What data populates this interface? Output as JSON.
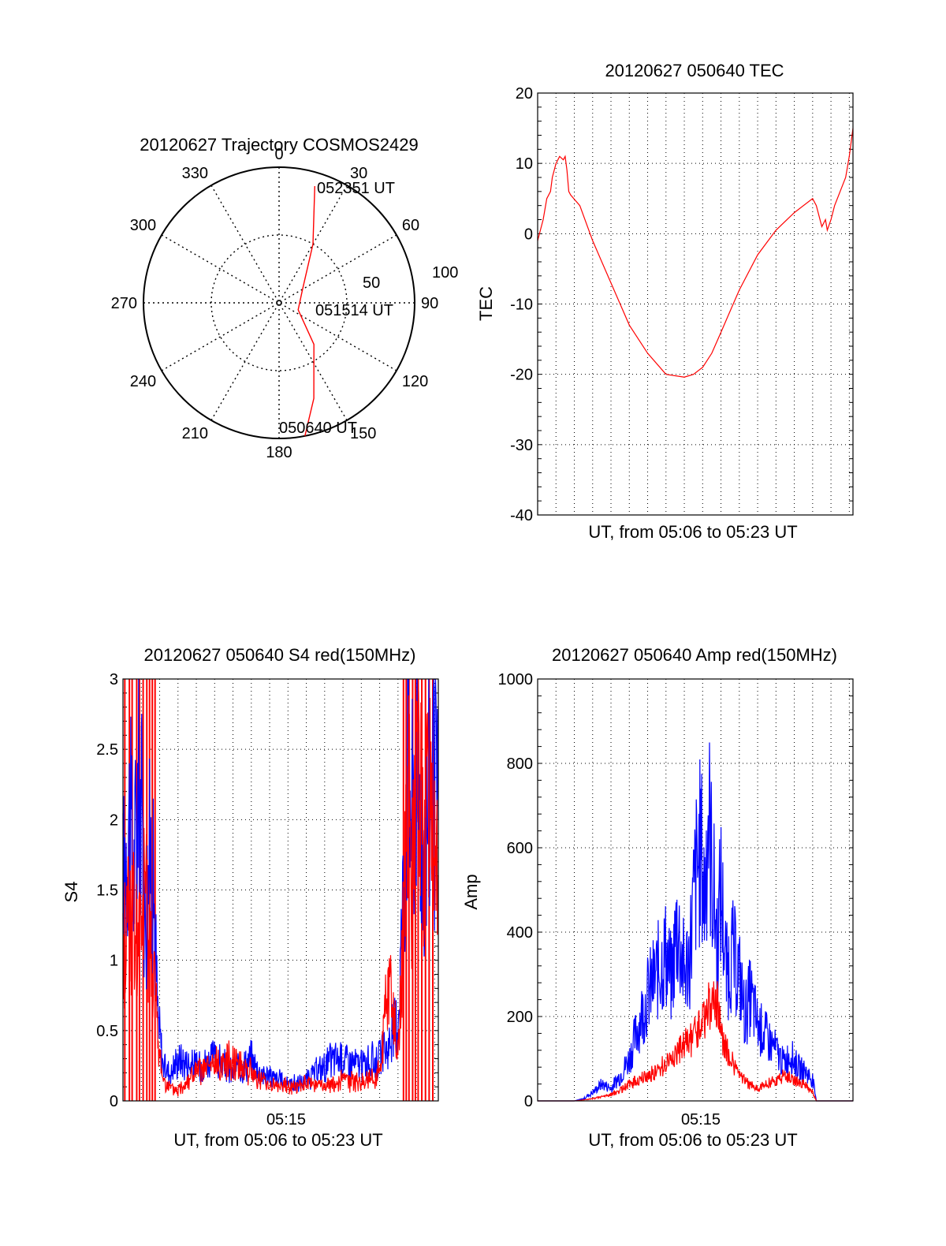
{
  "chart_data": [
    {
      "type": "polar",
      "title": "20120627 Trajectory COSMOS2429",
      "angle_labels": [
        "0",
        "30",
        "60",
        "90",
        "120",
        "150",
        "180",
        "210",
        "240",
        "270",
        "300",
        "330"
      ],
      "radius_labels": [
        "50",
        "100"
      ],
      "grid": true,
      "annotations": [
        "052351 UT",
        "051514 UT",
        "050640 UT"
      ],
      "series": [
        {
          "color": "#ff0000",
          "points": [
            {
              "az": 169,
              "r": 100
            },
            {
              "az": 160,
              "r": 75
            },
            {
              "az": 140,
              "r": 40
            },
            {
              "az": 110,
              "r": 15
            },
            {
              "az": 60,
              "r": 20
            },
            {
              "az": 30,
              "r": 50
            },
            {
              "az": 17,
              "r": 90
            }
          ]
        }
      ]
    },
    {
      "type": "line",
      "title": "20120627 050640 TEC",
      "xlabel": "UT, from 05:06 to 05:23 UT",
      "ylabel": "TEC",
      "ylim": [
        -40,
        20
      ],
      "yticks": [
        "20",
        "10",
        "0",
        "-10",
        "-20",
        "-30",
        "-40"
      ],
      "xlim": [
        0,
        17.2
      ],
      "grid": true,
      "series": [
        {
          "color": "#ff0000",
          "x": [
            0.0,
            0.1,
            0.3,
            0.5,
            0.7,
            0.8,
            1.0,
            1.2,
            1.4,
            1.5,
            1.6,
            1.7,
            1.8,
            2.3,
            3.0,
            4.0,
            5.0,
            6.0,
            7.0,
            8.0,
            8.5,
            9.0,
            9.5,
            10.0,
            10.5,
            11.0,
            12.0,
            13.0,
            14.0,
            15.0,
            15.2,
            15.5,
            15.7,
            15.8,
            16.0,
            16.2,
            16.5,
            16.8,
            17.0,
            17.2
          ],
          "y": [
            -1,
            0,
            2,
            5,
            6,
            8,
            10,
            11,
            10.5,
            11,
            9,
            6,
            5.5,
            4,
            -1,
            -7,
            -13,
            -17,
            -20,
            -20.4,
            -20,
            -19,
            -17,
            -14,
            -11,
            -8,
            -3,
            0.5,
            3,
            5,
            4,
            1,
            2,
            0.5,
            2,
            4,
            6,
            8,
            11,
            15
          ]
        }
      ]
    },
    {
      "type": "line",
      "title": "20120627 050640 S4 red(150MHz)",
      "xlabel": "UT, from 05:06 to 05:23 UT",
      "ylabel": "S4",
      "ylim": [
        0,
        3
      ],
      "yticks": [
        "3",
        "2.5",
        "2",
        "1.5",
        "1",
        "0.5",
        "0"
      ],
      "xlim": [
        0,
        17.2
      ],
      "xticks": [
        {
          "x": 8.9,
          "label": "05:15"
        }
      ],
      "grid": true,
      "series": [
        {
          "color": "#0000ff",
          "x": [
            0.0,
            0.3,
            0.6,
            0.9,
            1.2,
            1.5,
            1.7,
            1.9,
            2.2,
            2.6,
            3.0,
            4.0,
            5.0,
            6.0,
            7.0,
            7.5,
            8.0,
            8.5,
            9.0,
            9.5,
            10.0,
            10.5,
            11.0,
            11.5,
            12.0,
            13.0,
            14.0,
            14.5,
            15.0,
            15.3,
            15.5,
            15.8,
            16.0,
            16.4,
            16.8,
            17.2
          ],
          "y": [
            1.5,
            2.1,
            1.6,
            2.4,
            1.3,
            1.8,
            1.4,
            0.6,
            0.25,
            0.2,
            0.3,
            0.25,
            0.3,
            0.2,
            0.3,
            0.2,
            0.18,
            0.15,
            0.13,
            0.12,
            0.14,
            0.2,
            0.25,
            0.3,
            0.3,
            0.25,
            0.3,
            0.4,
            0.6,
            1.5,
            2.4,
            2.0,
            2.5,
            1.8,
            2.3,
            2.0
          ]
        },
        {
          "color": "#ff0000",
          "x": [
            0.0,
            0.3,
            0.6,
            0.9,
            1.2,
            1.5,
            1.7,
            1.9,
            2.2,
            2.6,
            3.0,
            3.5,
            4.0,
            5.0,
            6.0,
            7.0,
            7.5,
            8.0,
            8.5,
            9.0,
            9.5,
            10.0,
            10.5,
            11.0,
            11.5,
            12.0,
            13.0,
            14.0,
            14.5,
            15.0,
            15.3,
            15.5,
            15.8,
            16.0,
            16.4,
            16.8,
            17.2
          ],
          "y": [
            1.0,
            1.4,
            1.2,
            1.1,
            1.5,
            1.1,
            0.9,
            0.4,
            0.15,
            0.08,
            0.07,
            0.15,
            0.2,
            0.25,
            0.3,
            0.2,
            0.15,
            0.12,
            0.1,
            0.11,
            0.1,
            0.12,
            0.12,
            0.1,
            0.12,
            0.15,
            0.13,
            0.2,
            0.9,
            0.3,
            1.2,
            2.2,
            1.5,
            2.4,
            1.7,
            2.3,
            1.6
          ]
        }
      ]
    },
    {
      "type": "line",
      "title": "20120627 050640 Amp red(150MHz)",
      "xlabel": "UT, from 05:06 to 05:23 UT",
      "ylabel": "Amp",
      "ylim": [
        0,
        1000
      ],
      "yticks": [
        "1000",
        "800",
        "600",
        "400",
        "200",
        "0"
      ],
      "xlim": [
        0,
        17.2
      ],
      "xticks": [
        {
          "x": 8.9,
          "label": "05:15"
        }
      ],
      "grid": true,
      "series": [
        {
          "color": "#0000ff",
          "x": [
            0.0,
            1.0,
            2.0,
            2.5,
            3.0,
            3.5,
            4.0,
            4.5,
            5.0,
            5.5,
            6.0,
            6.5,
            7.0,
            7.3,
            7.6,
            8.0,
            8.3,
            8.6,
            8.9,
            9.1,
            9.3,
            9.5,
            9.8,
            10.0,
            10.3,
            10.6,
            11.0,
            11.3,
            11.6,
            12.0,
            12.5,
            13.0,
            13.4,
            13.8,
            14.2,
            14.6,
            14.8,
            15.0,
            15.2,
            16.0,
            17.2
          ],
          "y": [
            0,
            0,
            0,
            5,
            20,
            40,
            30,
            60,
            100,
            180,
            250,
            300,
            350,
            280,
            420,
            300,
            350,
            520,
            600,
            480,
            690,
            550,
            380,
            500,
            300,
            350,
            300,
            200,
            250,
            180,
            150,
            120,
            90,
            110,
            80,
            70,
            60,
            50,
            0,
            0,
            0
          ]
        },
        {
          "color": "#ff0000",
          "x": [
            0.0,
            1.0,
            2.0,
            3.0,
            3.5,
            4.0,
            4.5,
            5.0,
            5.5,
            6.0,
            6.5,
            7.0,
            7.5,
            8.0,
            8.5,
            8.9,
            9.2,
            9.5,
            9.8,
            10.0,
            10.5,
            11.0,
            11.5,
            12.0,
            12.5,
            13.0,
            13.5,
            14.0,
            14.5,
            15.0,
            15.2,
            16.0,
            17.2
          ],
          "y": [
            0,
            0,
            0,
            5,
            10,
            15,
            25,
            40,
            50,
            60,
            70,
            90,
            110,
            130,
            150,
            180,
            210,
            230,
            220,
            160,
            100,
            60,
            40,
            30,
            40,
            50,
            60,
            50,
            40,
            20,
            0,
            0,
            0
          ]
        }
      ]
    }
  ]
}
